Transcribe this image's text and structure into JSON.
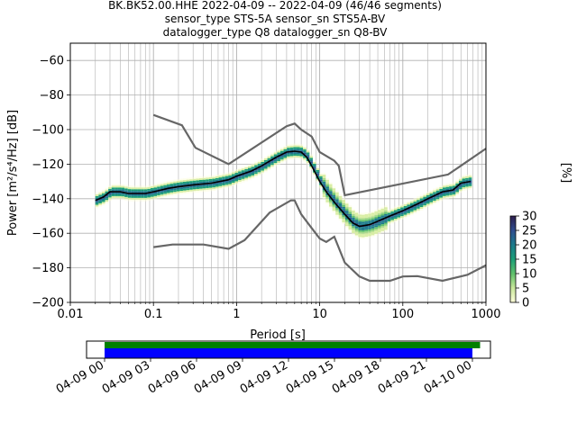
{
  "title_lines": [
    "BK.BK52.00.HHE   2022-04-09 -- 2022-04-09  (46/46 segments)",
    "sensor_type STS-5A sensor_sn STS5A-BV",
    "datalogger_type Q8 datalogger_sn Q8-BV"
  ],
  "chart_data": [
    {
      "type": "heatmap",
      "xlabel": "Period [s]",
      "ylabel": "Power [m²/s⁴/Hz] [dB]",
      "x_scale": "log",
      "xlim": [
        0.01,
        1000
      ],
      "ylim": [
        -200,
        -50
      ],
      "x_tick_labels": [
        "0.01",
        "0.1",
        "1",
        "10",
        "100",
        "1000"
      ],
      "y_ticks": [
        -60,
        -80,
        -100,
        -120,
        -140,
        -160,
        -180,
        -200
      ],
      "grid": true,
      "colorbar": {
        "label": "[%]",
        "ticks": [
          0,
          5,
          10,
          15,
          20,
          25,
          30
        ],
        "range": [
          0,
          30
        ]
      },
      "series": [
        {
          "role": "mean",
          "color": "#000000",
          "points": [
            [
              0.02,
              -141
            ],
            [
              0.025,
              -139
            ],
            [
              0.03,
              -136
            ],
            [
              0.04,
              -136
            ],
            [
              0.05,
              -137
            ],
            [
              0.06,
              -137
            ],
            [
              0.08,
              -137
            ],
            [
              0.1,
              -136
            ],
            [
              0.15,
              -134
            ],
            [
              0.2,
              -133
            ],
            [
              0.3,
              -132
            ],
            [
              0.5,
              -131
            ],
            [
              0.8,
              -129
            ],
            [
              1,
              -127
            ],
            [
              1.5,
              -124
            ],
            [
              2,
              -121
            ],
            [
              3,
              -116
            ],
            [
              4,
              -113
            ],
            [
              5,
              -112.5
            ],
            [
              6,
              -113
            ],
            [
              7,
              -116
            ],
            [
              8,
              -121
            ],
            [
              10,
              -130
            ],
            [
              12,
              -136
            ],
            [
              15,
              -142
            ],
            [
              20,
              -149
            ],
            [
              25,
              -154
            ],
            [
              30,
              -156
            ],
            [
              40,
              -155
            ],
            [
              50,
              -153
            ],
            [
              70,
              -150
            ],
            [
              100,
              -147
            ],
            [
              150,
              -143
            ],
            [
              200,
              -140
            ],
            [
              300,
              -136
            ],
            [
              400,
              -135
            ],
            [
              500,
              -131
            ],
            [
              650,
              -130
            ]
          ]
        },
        {
          "role": "new-high-noise-model",
          "color": "#666666",
          "points": [
            [
              0.1,
              -91.5
            ],
            [
              0.22,
              -97.5
            ],
            [
              0.32,
              -110.5
            ],
            [
              0.8,
              -120
            ],
            [
              4,
              -98
            ],
            [
              5,
              -96.5
            ],
            [
              6,
              -100
            ],
            [
              8,
              -104
            ],
            [
              10,
              -113
            ],
            [
              15,
              -118
            ],
            [
              17,
              -121
            ],
            [
              20,
              -138
            ],
            [
              350,
              -126
            ],
            [
              1000,
              -111
            ]
          ]
        },
        {
          "role": "new-low-noise-model",
          "color": "#666666",
          "points": [
            [
              0.1,
              -168
            ],
            [
              0.17,
              -166.5
            ],
            [
              0.4,
              -166.5
            ],
            [
              0.8,
              -169
            ],
            [
              1.25,
              -164
            ],
            [
              2.5,
              -148
            ],
            [
              4.5,
              -141
            ],
            [
              5,
              -141
            ],
            [
              6,
              -149
            ],
            [
              8,
              -157
            ],
            [
              10,
              -163
            ],
            [
              12,
              -165
            ],
            [
              15,
              -162
            ],
            [
              20,
              -177
            ],
            [
              30,
              -185
            ],
            [
              40,
              -187.5
            ],
            [
              70,
              -187.5
            ],
            [
              100,
              -185
            ],
            [
              150,
              -184.8
            ],
            [
              300,
              -187.5
            ],
            [
              600,
              -184
            ],
            [
              1000,
              -178.5
            ]
          ]
        }
      ]
    },
    {
      "type": "timeline",
      "tick_labels": [
        "04-09 00",
        "04-09 03",
        "04-09 06",
        "04-09 09",
        "04-09 12",
        "04-09 15",
        "04-09 18",
        "04-09 21",
        "04-10 00"
      ],
      "bars": [
        {
          "role": "data-coverage",
          "color": "#008000",
          "start_hour": 0,
          "end_hour": 24.5
        },
        {
          "role": "psd-coverage",
          "color": "#0000ff",
          "start_hour": 0,
          "end_hour": 24
        }
      ]
    }
  ]
}
